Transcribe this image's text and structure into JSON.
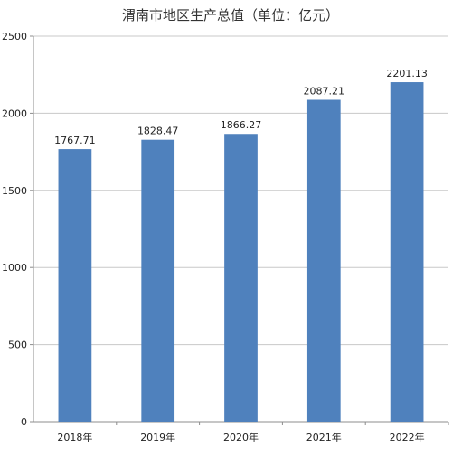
{
  "chart_data": {
    "type": "bar",
    "title": "渭南市地区生产总值（单位：亿元）",
    "xlabel": "",
    "ylabel": "",
    "categories": [
      "2018年",
      "2019年",
      "2020年",
      "2021年",
      "2022年"
    ],
    "values": [
      1767.71,
      1828.47,
      1866.27,
      2087.21,
      2201.13
    ],
    "value_labels": [
      "1767.71",
      "1828.47",
      "1866.27",
      "2087.21",
      "2201.13"
    ],
    "ylim": [
      0,
      2500
    ],
    "yticks": [
      0,
      500,
      1000,
      1500,
      2000,
      2500
    ],
    "grid": true,
    "legend": "none",
    "colors": {
      "bar": "#4F81BD",
      "gridline": "#C8C8C8",
      "axis": "#8C8C8C"
    }
  }
}
